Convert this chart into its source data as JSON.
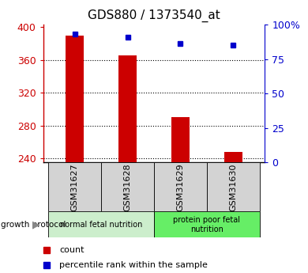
{
  "title": "GDS880 / 1373540_at",
  "samples": [
    "GSM31627",
    "GSM31628",
    "GSM31629",
    "GSM31630"
  ],
  "bar_values": [
    390,
    365,
    290,
    248
  ],
  "percentile_values": [
    93,
    91,
    86,
    85
  ],
  "bar_color": "#cc0000",
  "dot_color": "#0000cc",
  "ylim_left": [
    235,
    403
  ],
  "yticks_left": [
    240,
    280,
    320,
    360,
    400
  ],
  "ylim_right": [
    0,
    100
  ],
  "yticks_right": [
    0,
    25,
    50,
    75,
    100
  ],
  "ytick_labels_right": [
    "0",
    "25",
    "50",
    "75",
    "100%"
  ],
  "groups": [
    {
      "label": "normal fetal nutrition",
      "indices": [
        0,
        1
      ],
      "color": "#cceecc"
    },
    {
      "label": "protein poor fetal\nnutrition",
      "indices": [
        2,
        3
      ],
      "color": "#66ee66"
    }
  ],
  "group_protocol_label": "growth protocol",
  "legend_items": [
    {
      "color": "#cc0000",
      "label": "count"
    },
    {
      "color": "#0000cc",
      "label": "percentile rank within the sample"
    }
  ],
  "left_color": "#cc0000",
  "right_color": "#0000cc",
  "bar_width": 0.35
}
